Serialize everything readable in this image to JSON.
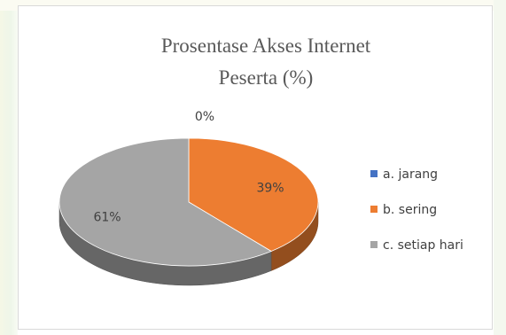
{
  "chart_data": {
    "type": "pie",
    "title": [
      "Prosentase Akses Internet",
      "Peserta (%)"
    ],
    "categories": [
      "a. jarang",
      "b. sering",
      "c. setiap hari"
    ],
    "values": [
      0,
      39,
      61
    ],
    "data_labels": [
      "0%",
      "39%",
      "61%"
    ],
    "colors": [
      "#4472c4",
      "#ed7d31",
      "#a5a5a5"
    ],
    "style": "3d",
    "legend_position": "right"
  }
}
